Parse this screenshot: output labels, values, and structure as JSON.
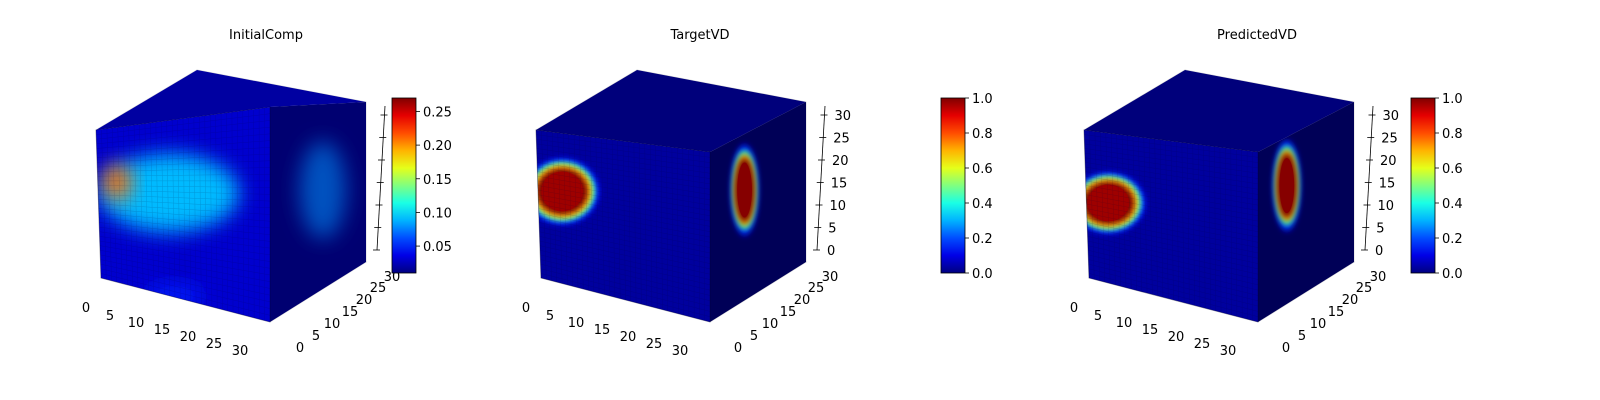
{
  "chart_data": [
    {
      "type": "voxel-3d",
      "title": "InitialComp",
      "x_ticks": [
        "0",
        "5",
        "10",
        "15",
        "20",
        "25",
        "30"
      ],
      "y_ticks": [
        "0",
        "5",
        "10",
        "15",
        "20",
        "25",
        "30"
      ],
      "z_ticks": [
        "",
        "",
        "",
        "",
        "",
        "",
        ""
      ],
      "axis_range": [
        0,
        32
      ],
      "colormap": "jet",
      "colorbar": {
        "range": [
          0.01,
          0.27
        ],
        "ticks": [
          "0.05",
          "0.10",
          "0.15",
          "0.20",
          "0.25"
        ],
        "tick_values": [
          0.05,
          0.1,
          0.15,
          0.2,
          0.25
        ]
      },
      "front_blobs": [
        {
          "cx": 0.42,
          "cy": 0.4,
          "rx": 0.4,
          "ry": 0.18,
          "value": 0.09
        },
        {
          "cx": 0.12,
          "cy": 0.35,
          "rx": 0.08,
          "ry": 0.08,
          "value": 0.21
        },
        {
          "cx": 0.45,
          "cy": 0.88,
          "rx": 0.17,
          "ry": 0.05,
          "value": 0.05
        }
      ],
      "side_blobs": [
        {
          "cx": 0.55,
          "cy": 0.4,
          "rx": 0.24,
          "ry": 0.22,
          "value": 0.07
        }
      ],
      "background_value": 0.03
    },
    {
      "type": "voxel-3d",
      "title": "TargetVD",
      "x_ticks": [
        "0",
        "5",
        "10",
        "15",
        "20",
        "25",
        "30"
      ],
      "y_ticks": [
        "0",
        "5",
        "10",
        "15",
        "20",
        "25",
        "30"
      ],
      "z_ticks": [
        "0",
        "5",
        "10",
        "15",
        "20",
        "25",
        "30"
      ],
      "axis_range": [
        0,
        32
      ],
      "colormap": "jet",
      "colorbar": {
        "range": [
          0.0,
          1.0
        ],
        "ticks": [
          "0.0",
          "0.2",
          "0.4",
          "0.6",
          "0.8",
          "1.0"
        ],
        "tick_values": [
          0.0,
          0.2,
          0.4,
          0.6,
          0.8,
          1.0
        ]
      },
      "front_blobs": [
        {
          "cx": 0.15,
          "cy": 0.32,
          "rx": 0.16,
          "ry": 0.13,
          "value": 1.0
        }
      ],
      "side_blobs": [
        {
          "cx": 0.36,
          "cy": 0.4,
          "rx": 0.11,
          "ry": 0.16,
          "value": 1.0
        }
      ],
      "background_value": 0.03
    },
    {
      "type": "voxel-3d",
      "title": "PredictedVD",
      "x_ticks": [
        "0",
        "5",
        "10",
        "15",
        "20",
        "25",
        "30"
      ],
      "y_ticks": [
        "0",
        "5",
        "10",
        "15",
        "20",
        "25",
        "30"
      ],
      "z_ticks": [
        "0",
        "5",
        "10",
        "15",
        "20",
        "25",
        "30"
      ],
      "axis_range": [
        0,
        32
      ],
      "colormap": "jet",
      "colorbar": {
        "range": [
          0.0,
          1.0
        ],
        "ticks": [
          "0.0",
          "0.2",
          "0.4",
          "0.6",
          "0.8",
          "1.0"
        ],
        "tick_values": [
          0.0,
          0.2,
          0.4,
          0.6,
          0.8,
          1.0
        ]
      },
      "front_blobs": [
        {
          "cx": 0.14,
          "cy": 0.38,
          "rx": 0.16,
          "ry": 0.12,
          "value": 1.0
        }
      ],
      "side_blobs": [
        {
          "cx": 0.3,
          "cy": 0.38,
          "rx": 0.11,
          "ry": 0.16,
          "value": 1.0
        }
      ],
      "background_value": 0.03
    }
  ]
}
